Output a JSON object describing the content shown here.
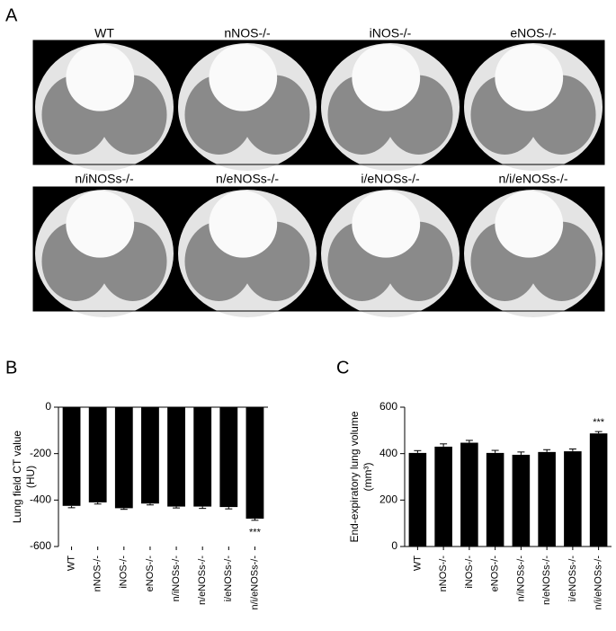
{
  "panel_a": {
    "panel_label": "A",
    "images": [
      "WT",
      "nNOS-/-",
      "iNOS-/-",
      "eNOS-/-",
      "n/iNOSs-/-",
      "n/eNOSs-/-",
      "i/eNOSs-/-",
      "n/i/eNOSs-/-"
    ]
  },
  "chart_data": [
    {
      "type": "bar",
      "panel_label": "B",
      "y_label": [
        "Lung field CT value",
        "(HU)"
      ],
      "categories": [
        "WT",
        "nNOS-/-",
        "iNOS-/-",
        "eNOS-/-",
        "n/iNOSs-/-",
        "n/eNOSs-/-",
        "i/eNOSs-/-",
        "n/i/eNOSs-/-"
      ],
      "values": [
        -425,
        -410,
        -435,
        -415,
        -428,
        -428,
        -430,
        -480
      ],
      "errors": [
        8,
        7,
        5,
        6,
        6,
        8,
        8,
        7
      ],
      "significance": [
        null,
        null,
        null,
        null,
        null,
        null,
        null,
        "***"
      ],
      "color": "#000000",
      "ylim": [
        -600,
        0
      ],
      "yticks": [
        -600,
        -400,
        -200,
        0
      ]
    },
    {
      "type": "bar",
      "panel_label": "C",
      "y_label": [
        "End-expiratory lung volume",
        "(mm³)"
      ],
      "categories": [
        "WT",
        "nNOS-/-",
        "iNOS-/-",
        "eNOS-/-",
        "n/iNOSs-/-",
        "n/eNOSs-/-",
        "i/eNOSs-/-",
        "n/i/eNOSs-/-"
      ],
      "values": [
        403,
        430,
        447,
        403,
        395,
        407,
        410,
        487
      ],
      "errors": [
        10,
        12,
        10,
        11,
        12,
        10,
        10,
        8
      ],
      "significance": [
        null,
        null,
        null,
        null,
        null,
        null,
        null,
        "***"
      ],
      "color": "#000000",
      "ylim": [
        0,
        600
      ],
      "yticks": [
        0,
        200,
        400,
        600
      ]
    }
  ]
}
